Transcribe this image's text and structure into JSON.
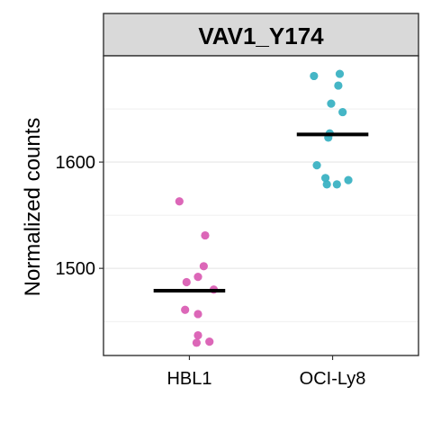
{
  "chart_data": {
    "type": "scatter",
    "title": "VAV1_Y174",
    "xlabel": "",
    "ylabel": "Normalized counts",
    "categories": [
      "HBL1",
      "OCI-Ly8"
    ],
    "y_ticks": [
      1500,
      1600
    ],
    "ylim": [
      1418,
      1700
    ],
    "grid": true,
    "series": [
      {
        "category": "HBL1",
        "color": "#DA5FB4",
        "points": [
          {
            "x": 0.93,
            "y": 1563
          },
          {
            "x": 1.11,
            "y": 1531
          },
          {
            "x": 1.1,
            "y": 1502
          },
          {
            "x": 1.06,
            "y": 1492
          },
          {
            "x": 0.98,
            "y": 1487
          },
          {
            "x": 1.17,
            "y": 1480
          },
          {
            "x": 0.97,
            "y": 1461
          },
          {
            "x": 1.06,
            "y": 1457
          },
          {
            "x": 1.06,
            "y": 1437
          },
          {
            "x": 1.14,
            "y": 1431
          },
          {
            "x": 1.05,
            "y": 1430
          }
        ],
        "mean": 1479
      },
      {
        "category": "OCI-Ly8",
        "color": "#3BB2C3",
        "points": [
          {
            "x": 1.87,
            "y": 1681
          },
          {
            "x": 2.05,
            "y": 1683
          },
          {
            "x": 2.04,
            "y": 1672
          },
          {
            "x": 1.99,
            "y": 1655
          },
          {
            "x": 2.07,
            "y": 1647
          },
          {
            "x": 1.98,
            "y": 1627
          },
          {
            "x": 1.97,
            "y": 1623
          },
          {
            "x": 1.89,
            "y": 1597
          },
          {
            "x": 1.95,
            "y": 1585
          },
          {
            "x": 2.11,
            "y": 1583
          },
          {
            "x": 1.96,
            "y": 1579
          },
          {
            "x": 2.03,
            "y": 1579
          }
        ],
        "mean": 1626
      }
    ]
  }
}
